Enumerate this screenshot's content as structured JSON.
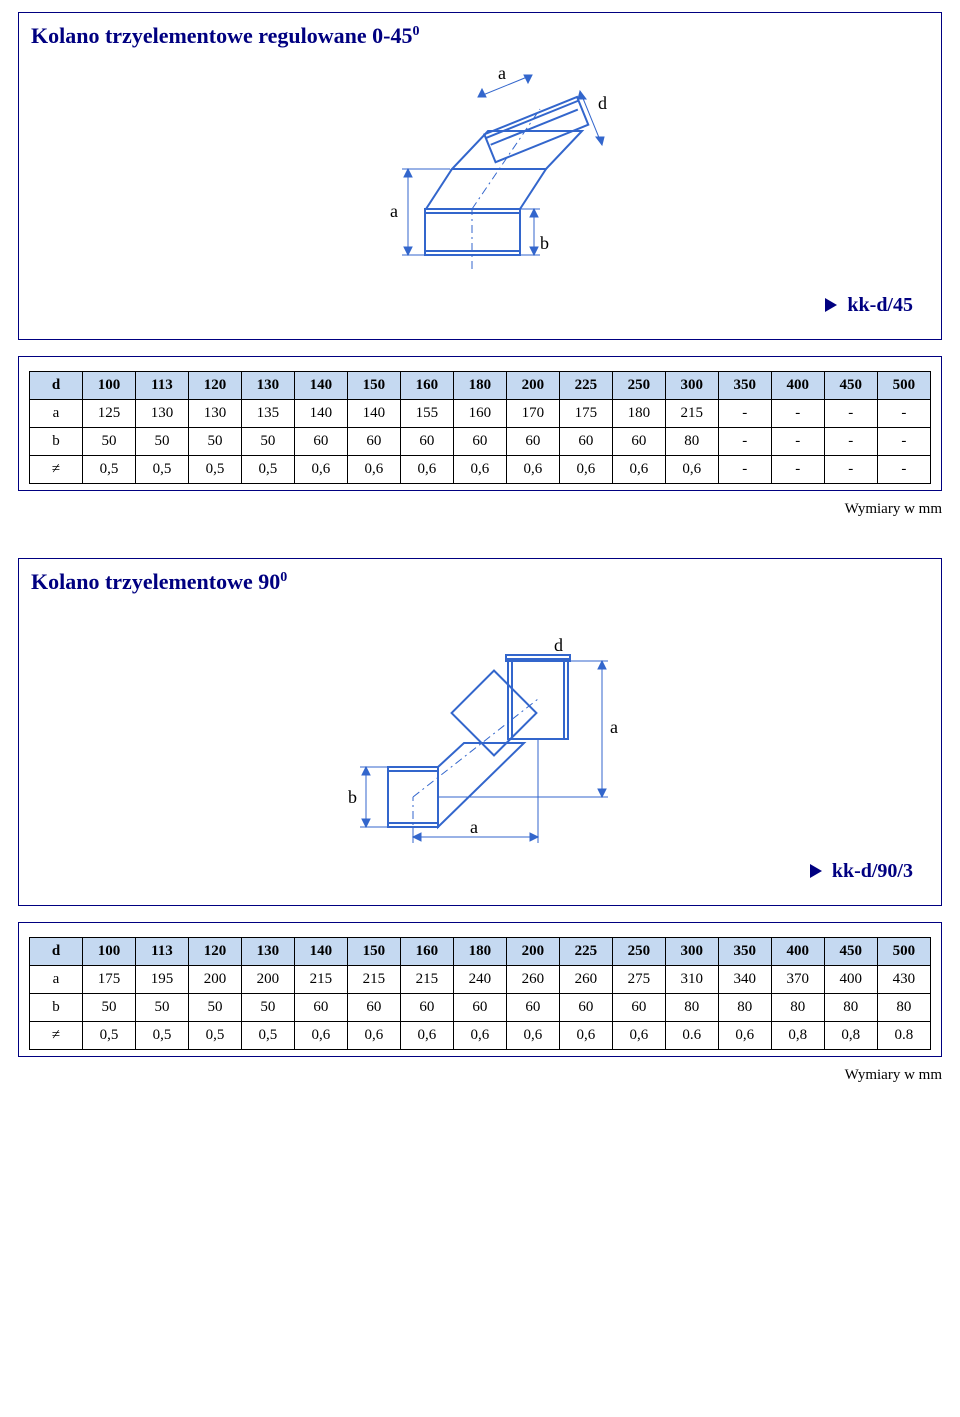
{
  "colors": {
    "accent": "#000080",
    "header_bg": "#c5d9f1",
    "border": "#000000",
    "stroke": "#3366cc",
    "background": "#ffffff"
  },
  "units_label": "Wymiary w mm",
  "section1": {
    "title_main": "Kolano trzyelementowe regulowane 0-45",
    "title_sup": "0",
    "code": "kk-d/45",
    "diagram": {
      "labels": {
        "a": "a",
        "b": "b",
        "d": "d"
      }
    },
    "table": {
      "header_first": "d",
      "header": [
        "100",
        "113",
        "120",
        "130",
        "140",
        "150",
        "160",
        "180",
        "200",
        "225",
        "250",
        "300",
        "350",
        "400",
        "450",
        "500"
      ],
      "rows": [
        {
          "label": "a",
          "cells": [
            "125",
            "130",
            "130",
            "135",
            "140",
            "140",
            "155",
            "160",
            "170",
            "175",
            "180",
            "215",
            "-",
            "-",
            "-",
            "-"
          ]
        },
        {
          "label": "b",
          "cells": [
            "50",
            "50",
            "50",
            "50",
            "60",
            "60",
            "60",
            "60",
            "60",
            "60",
            "60",
            "80",
            "-",
            "-",
            "-",
            "-"
          ]
        },
        {
          "label": "≠",
          "cells": [
            "0,5",
            "0,5",
            "0,5",
            "0,5",
            "0,6",
            "0,6",
            "0,6",
            "0,6",
            "0,6",
            "0,6",
            "0,6",
            "0,6",
            "-",
            "-",
            "-",
            "-"
          ]
        }
      ]
    }
  },
  "section2": {
    "title_main": "Kolano trzyelementowe 90",
    "title_sup": "0",
    "code": "kk-d/90/3",
    "diagram": {
      "labels": {
        "a": "a",
        "b": "b",
        "d": "d"
      }
    },
    "table": {
      "header_first": "d",
      "header": [
        "100",
        "113",
        "120",
        "130",
        "140",
        "150",
        "160",
        "180",
        "200",
        "225",
        "250",
        "300",
        "350",
        "400",
        "450",
        "500"
      ],
      "rows": [
        {
          "label": "a",
          "cells": [
            "175",
            "195",
            "200",
            "200",
            "215",
            "215",
            "215",
            "240",
            "260",
            "260",
            "275",
            "310",
            "340",
            "370",
            "400",
            "430"
          ]
        },
        {
          "label": "b",
          "cells": [
            "50",
            "50",
            "50",
            "50",
            "60",
            "60",
            "60",
            "60",
            "60",
            "60",
            "60",
            "80",
            "80",
            "80",
            "80",
            "80"
          ]
        },
        {
          "label": "≠",
          "cells": [
            "0,5",
            "0,5",
            "0,5",
            "0,5",
            "0,6",
            "0,6",
            "0,6",
            "0,6",
            "0,6",
            "0,6",
            "0,6",
            "0.6",
            "0,6",
            "0,8",
            "0,8",
            "0.8"
          ]
        }
      ]
    }
  }
}
